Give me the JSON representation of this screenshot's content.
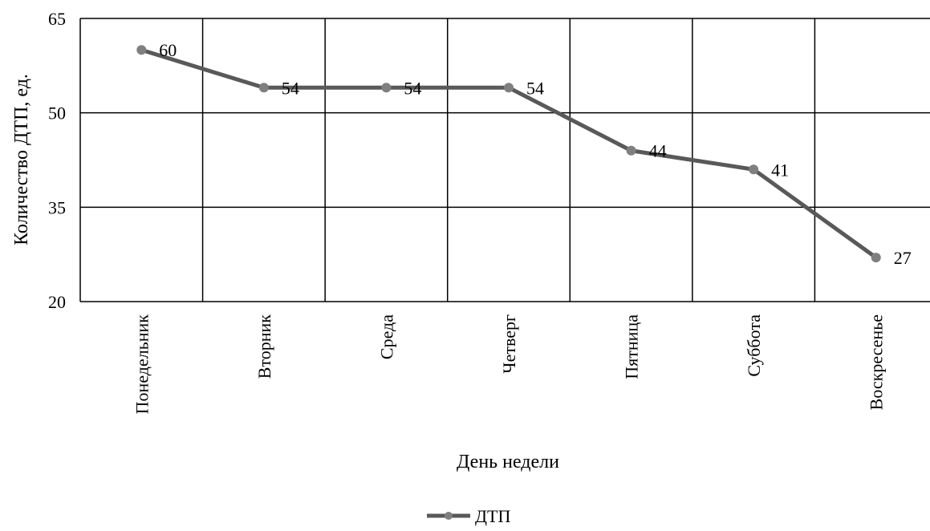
{
  "chart_data": {
    "type": "line",
    "categories": [
      "Понедельник",
      "Вторник",
      "Среда",
      "Четверг",
      "Пятница",
      "Суббота",
      "Воскресенье"
    ],
    "series": [
      {
        "name": "ДТП",
        "values": [
          60,
          54,
          54,
          54,
          44,
          41,
          27
        ]
      }
    ],
    "xlabel": "День недели",
    "ylabel": "Количество ДТП, ед.",
    "ylim": [
      20,
      65
    ],
    "yticks": [
      20,
      35,
      50,
      65
    ],
    "grid": true,
    "legend": "bottom",
    "data_labels": true,
    "line_color": "#595959",
    "marker_color": "#7f7f7f"
  }
}
